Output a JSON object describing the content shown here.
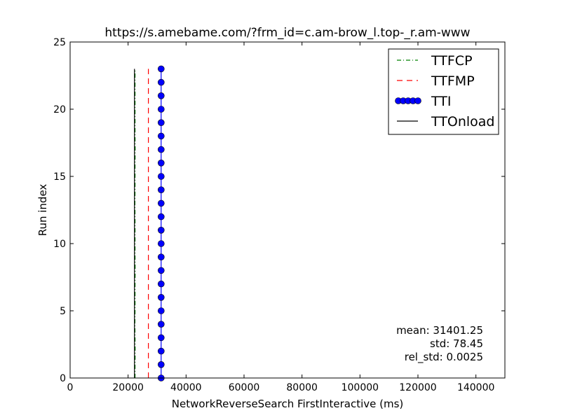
{
  "chart_data": {
    "type": "line",
    "title": "https://s.amebame.com/?frm_id=c.am-brow_l.top-_r.am-www",
    "xlabel": "NetworkReverseSearch FirstInteractive (ms)",
    "ylabel": "Run index",
    "xlim": [
      0,
      150000
    ],
    "ylim": [
      0,
      25
    ],
    "xticks": [
      0,
      20000,
      40000,
      60000,
      80000,
      100000,
      120000,
      140000
    ],
    "xtick_labels": [
      "0",
      "20000",
      "40000",
      "60000",
      "80000",
      "100000",
      "120000",
      "140000"
    ],
    "yticks": [
      0,
      5,
      10,
      15,
      20,
      25
    ],
    "ytick_labels": [
      "0",
      "5",
      "10",
      "15",
      "20",
      "25"
    ],
    "grid": false,
    "legend_position": "top-right",
    "series": [
      {
        "name": "TTFCP",
        "color": "#008000",
        "style": "dashdot",
        "x": [
          22400,
          22400,
          22450,
          22400,
          22350,
          22400,
          22400,
          22400,
          22450,
          22400,
          22400,
          22400,
          22400,
          22350,
          22400,
          22400,
          22400,
          22450,
          22400,
          22400,
          22400,
          22400,
          22400,
          22400
        ],
        "y": [
          0,
          1,
          2,
          3,
          4,
          5,
          6,
          7,
          8,
          9,
          10,
          11,
          12,
          13,
          14,
          15,
          16,
          17,
          18,
          19,
          20,
          21,
          22,
          23
        ]
      },
      {
        "name": "TTFMP",
        "color": "#ff0000",
        "style": "dashed",
        "x": [
          27000,
          27000,
          27000,
          27000,
          27000,
          27000,
          27000,
          27000,
          27000,
          27000,
          27000,
          27000,
          27000,
          27000,
          27000,
          27000,
          27000,
          27000,
          27000,
          27000,
          27000,
          27000,
          27000,
          27000
        ],
        "y": [
          0,
          1,
          2,
          3,
          4,
          5,
          6,
          7,
          8,
          9,
          10,
          11,
          12,
          13,
          14,
          15,
          16,
          17,
          18,
          19,
          20,
          21,
          22,
          23
        ]
      },
      {
        "name": "TTI",
        "color": "#0000ff",
        "style": "solid-markers",
        "x": [
          31400,
          31400,
          31400,
          31400,
          31400,
          31400,
          31400,
          31400,
          31400,
          31400,
          31400,
          31400,
          31400,
          31400,
          31400,
          31400,
          31400,
          31400,
          31400,
          31400,
          31400,
          31400,
          31400,
          31400
        ],
        "y": [
          0,
          1,
          2,
          3,
          4,
          5,
          6,
          7,
          8,
          9,
          10,
          11,
          12,
          13,
          14,
          15,
          16,
          17,
          18,
          19,
          20,
          21,
          22,
          23
        ]
      },
      {
        "name": "TTOnload",
        "color": "#000000",
        "style": "solid",
        "x": [
          22200,
          22200,
          22200,
          22200,
          22200,
          22200,
          22200,
          22200,
          22200,
          22200,
          22200,
          22200,
          22200,
          22200,
          22200,
          22200,
          22200,
          22200,
          22200,
          22200,
          22200,
          22200,
          22200,
          22200
        ],
        "y": [
          0,
          1,
          2,
          3,
          4,
          5,
          6,
          7,
          8,
          9,
          10,
          11,
          12,
          13,
          14,
          15,
          16,
          17,
          18,
          19,
          20,
          21,
          22,
          23
        ]
      }
    ],
    "annotations": {
      "mean": "mean: 31401.25",
      "std": "std: 78.45",
      "rel_std": "rel_std: 0.0025"
    }
  }
}
